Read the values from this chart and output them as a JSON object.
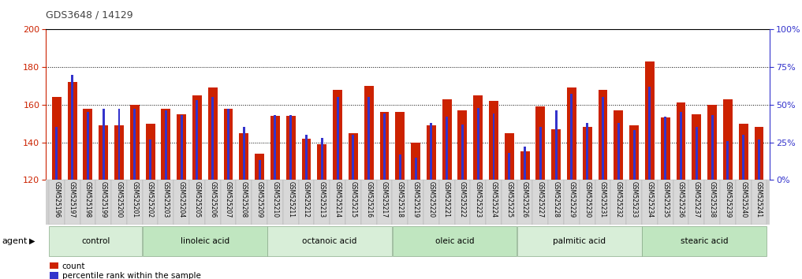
{
  "title": "GDS3648 / 14129",
  "samples": [
    "GSM525196",
    "GSM525197",
    "GSM525198",
    "GSM525199",
    "GSM525200",
    "GSM525201",
    "GSM525202",
    "GSM525203",
    "GSM525204",
    "GSM525205",
    "GSM525206",
    "GSM525207",
    "GSM525208",
    "GSM525209",
    "GSM525210",
    "GSM525211",
    "GSM525212",
    "GSM525213",
    "GSM525214",
    "GSM525215",
    "GSM525216",
    "GSM525217",
    "GSM525218",
    "GSM525219",
    "GSM525220",
    "GSM525221",
    "GSM525222",
    "GSM525223",
    "GSM525224",
    "GSM525225",
    "GSM525226",
    "GSM525227",
    "GSM525228",
    "GSM525229",
    "GSM525230",
    "GSM525231",
    "GSM525232",
    "GSM525233",
    "GSM525234",
    "GSM525235",
    "GSM525236",
    "GSM525237",
    "GSM525238",
    "GSM525239",
    "GSM525240",
    "GSM525241"
  ],
  "counts": [
    164,
    172,
    158,
    149,
    149,
    160,
    150,
    158,
    155,
    165,
    169,
    158,
    145,
    134,
    154,
    154,
    142,
    139,
    168,
    145,
    170,
    156,
    156,
    140,
    149,
    163,
    157,
    165,
    162,
    145,
    135,
    159,
    147,
    169,
    148,
    168,
    157,
    149,
    183,
    153,
    161,
    155,
    160,
    163,
    150,
    148
  ],
  "percentiles": [
    35,
    70,
    45,
    47,
    47,
    47,
    27,
    46,
    43,
    53,
    55,
    47,
    35,
    13,
    43,
    43,
    30,
    28,
    55,
    30,
    55,
    44,
    17,
    15,
    38,
    42,
    37,
    48,
    44,
    18,
    22,
    35,
    46,
    57,
    38,
    55,
    38,
    33,
    62,
    42,
    45,
    35,
    43,
    26,
    30,
    27
  ],
  "groups": [
    {
      "label": "control",
      "start": 0,
      "end": 6
    },
    {
      "label": "linoleic acid",
      "start": 6,
      "end": 14
    },
    {
      "label": "octanoic acid",
      "start": 14,
      "end": 22
    },
    {
      "label": "oleic acid",
      "start": 22,
      "end": 30
    },
    {
      "label": "palmitic acid",
      "start": 30,
      "end": 38
    },
    {
      "label": "stearic acid",
      "start": 38,
      "end": 46
    }
  ],
  "group_colors": [
    "#d8eed8",
    "#c0e6c0",
    "#d8eed8",
    "#c0e6c0",
    "#d8eed8",
    "#c0e6c0"
  ],
  "ylim_left": [
    120,
    200
  ],
  "ylim_right": [
    0,
    100
  ],
  "yticks_left": [
    120,
    140,
    160,
    180,
    200
  ],
  "yticks_right": [
    0,
    25,
    50,
    75,
    100
  ],
  "ytick_labels_right": [
    "0%",
    "25%",
    "50%",
    "75%",
    "100%"
  ],
  "bar_color_red": "#cc2200",
  "bar_color_blue": "#3333cc",
  "left_axis_color": "#cc2200",
  "right_axis_color": "#3333cc",
  "bar_width": 0.6,
  "blue_bar_width": 0.15,
  "legend_count_label": "count",
  "legend_pct_label": "percentile rank within the sample",
  "agent_label": "agent",
  "xtick_bg_color": "#d0d0d0",
  "xtick_cell_color": "#d8d8d8",
  "title_color": "#444444"
}
